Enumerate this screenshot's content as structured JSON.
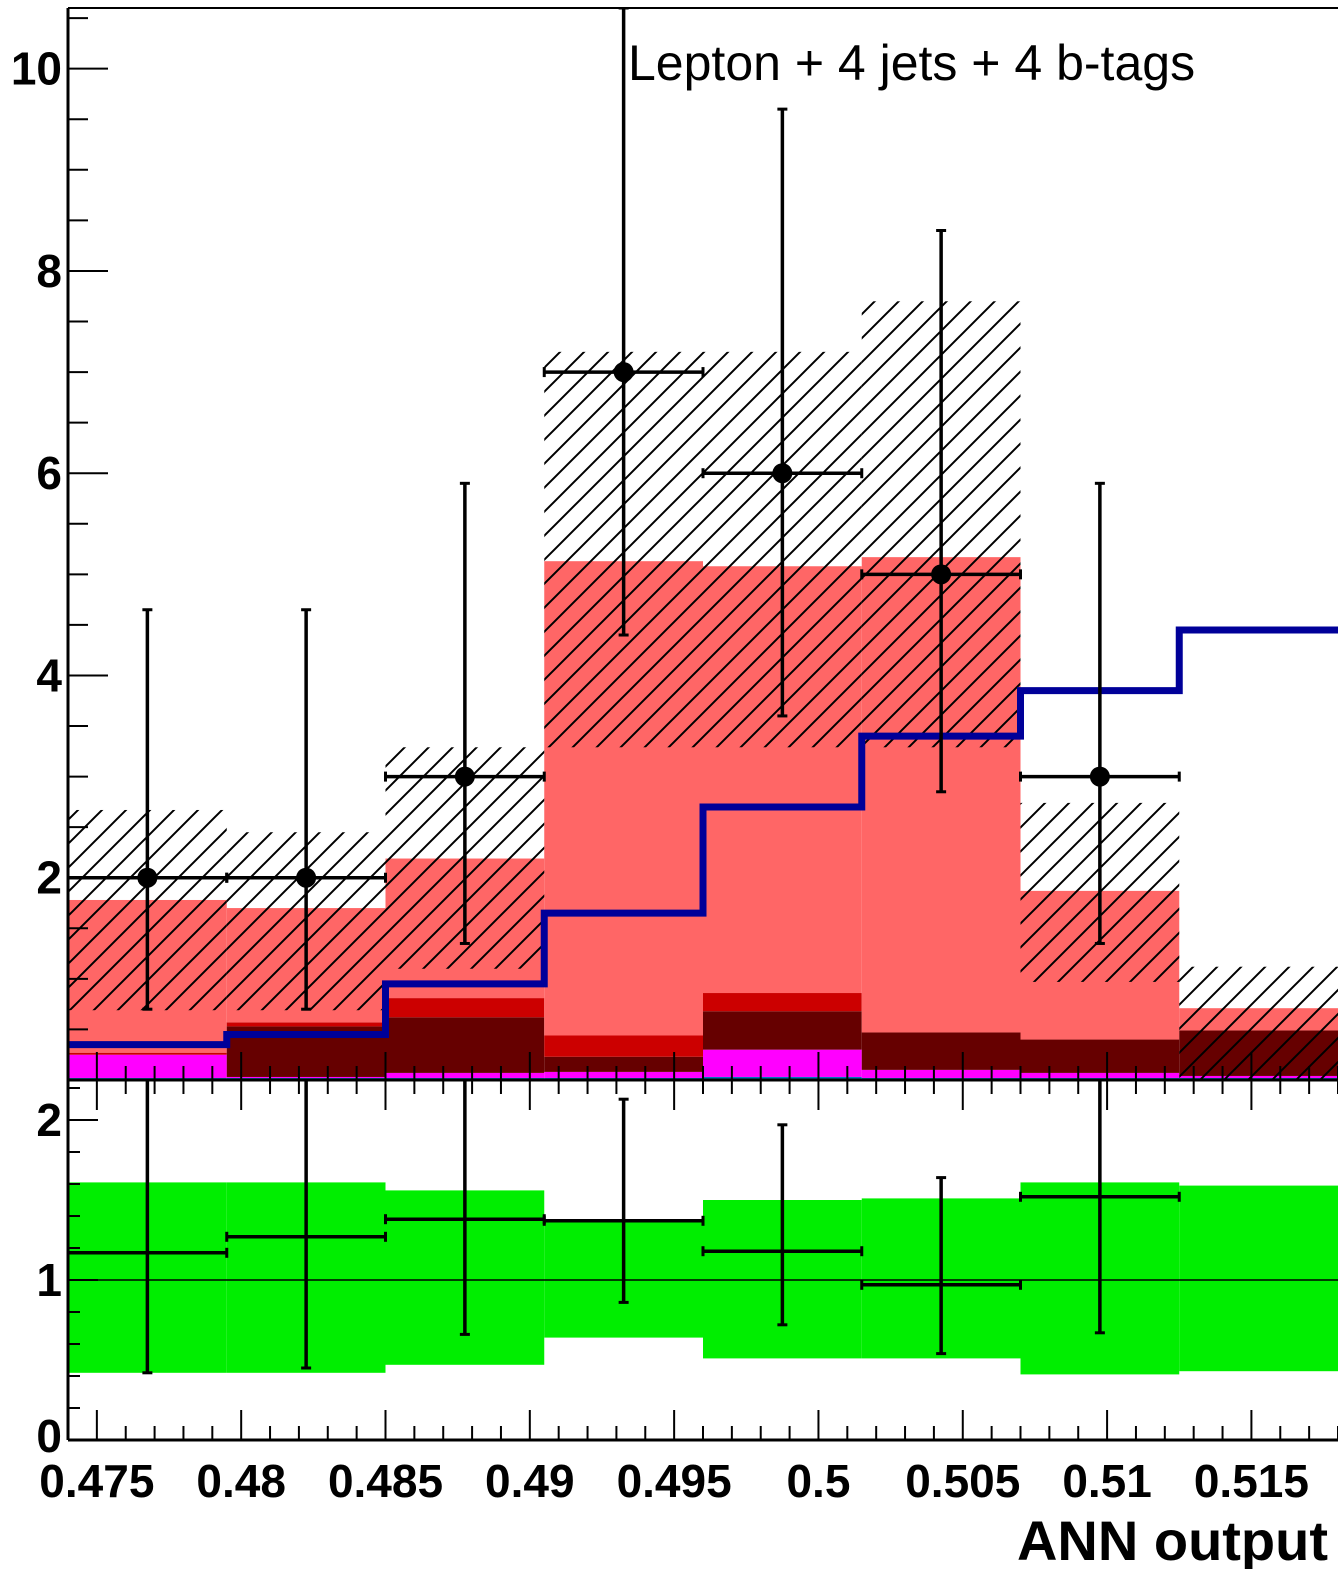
{
  "chart_data": [
    {
      "type": "bar",
      "annotation": "Lepton +  4 jets +  4 b-tags",
      "bins": [
        0.474,
        0.4795,
        0.485,
        0.4905,
        0.496,
        0.5015,
        0.507,
        0.5125,
        0.518
      ],
      "x_range": [
        0.474,
        0.518
      ],
      "ylim": [
        0,
        10.6
      ],
      "grid": false,
      "colors": {
        "stack_main": "#ff6666",
        "stack_red": "#cc0000",
        "stack_darkred": "#660000",
        "stack_magenta": "#ff00ff",
        "stack_blue": "#0077bb",
        "signal_line": "#000099",
        "uncertainty_hatch": "#000000",
        "data": "#000000"
      },
      "stack_layers": [
        {
          "color_key": "stack_blue",
          "values": [
            0.02,
            0.02,
            0.02,
            0.02,
            0.03,
            0.02,
            0.02,
            0.02
          ]
        },
        {
          "color_key": "stack_magenta",
          "values": [
            0.23,
            0.01,
            0.05,
            0.06,
            0.27,
            0.08,
            0.05,
            0.02
          ]
        },
        {
          "color_key": "stack_darkred",
          "values": [
            0.0,
            0.5,
            0.55,
            0.15,
            0.38,
            0.37,
            0.33,
            0.45
          ]
        },
        {
          "color_key": "stack_red",
          "values": [
            0.02,
            0.04,
            0.19,
            0.21,
            0.18,
            0.0,
            0.0,
            0.0
          ]
        },
        {
          "color_key": "stack_main",
          "values": [
            1.51,
            1.13,
            1.38,
            4.69,
            4.22,
            4.7,
            1.47,
            0.22
          ]
        }
      ],
      "total_mc": [
        1.78,
        1.7,
        2.19,
        5.13,
        5.08,
        5.17,
        1.87,
        0.71
      ],
      "uncertainty_band": {
        "low": [
          0.69,
          0.69,
          1.1,
          3.29,
          3.29,
          3.29,
          0.97,
          0.0
        ],
        "high": [
          2.67,
          2.45,
          3.29,
          7.2,
          7.2,
          7.7,
          2.74,
          1.12
        ]
      },
      "signal_line": [
        0.35,
        0.45,
        0.95,
        1.65,
        2.7,
        3.4,
        3.85,
        4.45
      ],
      "data_points": [
        {
          "y": 2,
          "ylo": 0.7,
          "yhi": 4.65
        },
        {
          "y": 2,
          "ylo": 0.7,
          "yhi": 4.65
        },
        {
          "y": 3,
          "ylo": 1.35,
          "yhi": 5.9
        },
        {
          "y": 7,
          "ylo": 4.4,
          "yhi": 10.6
        },
        {
          "y": 6,
          "ylo": 3.6,
          "yhi": 9.6
        },
        {
          "y": 5,
          "ylo": 2.85,
          "yhi": 8.4
        },
        {
          "y": 3,
          "ylo": 1.35,
          "yhi": 5.9
        }
      ],
      "y_ticks": [
        {
          "value": 2,
          "label": "2"
        },
        {
          "value": 4,
          "label": "4"
        },
        {
          "value": 6,
          "label": "6"
        },
        {
          "value": 8,
          "label": "8"
        },
        {
          "value": 10,
          "label": "10"
        }
      ]
    },
    {
      "type": "ratio",
      "bins": [
        0.474,
        0.4795,
        0.485,
        0.4905,
        0.496,
        0.5015,
        0.507,
        0.5125,
        0.518
      ],
      "ylim": [
        0,
        2.25
      ],
      "reference_line": 1,
      "band_color": "#00ee00",
      "band": {
        "low": [
          0.42,
          0.42,
          0.47,
          0.64,
          0.51,
          0.51,
          0.41,
          0.43
        ],
        "high": [
          1.61,
          1.61,
          1.56,
          1.38,
          1.5,
          1.51,
          1.61,
          1.59
        ]
      },
      "points": [
        {
          "y": 1.17,
          "ylo": 0.42,
          "yhi": 2.25
        },
        {
          "y": 1.27,
          "ylo": 0.45,
          "yhi": 2.25
        },
        {
          "y": 1.38,
          "ylo": 0.66,
          "yhi": 2.25
        },
        {
          "y": 1.37,
          "ylo": 0.86,
          "yhi": 2.13
        },
        {
          "y": 1.18,
          "ylo": 0.72,
          "yhi": 1.97
        },
        {
          "y": 0.97,
          "ylo": 0.54,
          "yhi": 1.64
        },
        {
          "y": 1.52,
          "ylo": 0.67,
          "yhi": 2.25
        }
      ],
      "y_ticks": [
        {
          "value": 0,
          "label": "0"
        },
        {
          "value": 1,
          "label": "1"
        },
        {
          "value": 2,
          "label": "2"
        }
      ],
      "x_ticks": [
        {
          "value": 0.475,
          "label": "0.475"
        },
        {
          "value": 0.48,
          "label": "0.48"
        },
        {
          "value": 0.485,
          "label": "0.485"
        },
        {
          "value": 0.49,
          "label": "0.49"
        },
        {
          "value": 0.495,
          "label": "0.495"
        },
        {
          "value": 0.5,
          "label": "0.5"
        },
        {
          "value": 0.505,
          "label": "0.505"
        },
        {
          "value": 0.51,
          "label": "0.51"
        },
        {
          "value": 0.515,
          "label": "0.515"
        }
      ],
      "xlabel": "ANN output"
    }
  ]
}
